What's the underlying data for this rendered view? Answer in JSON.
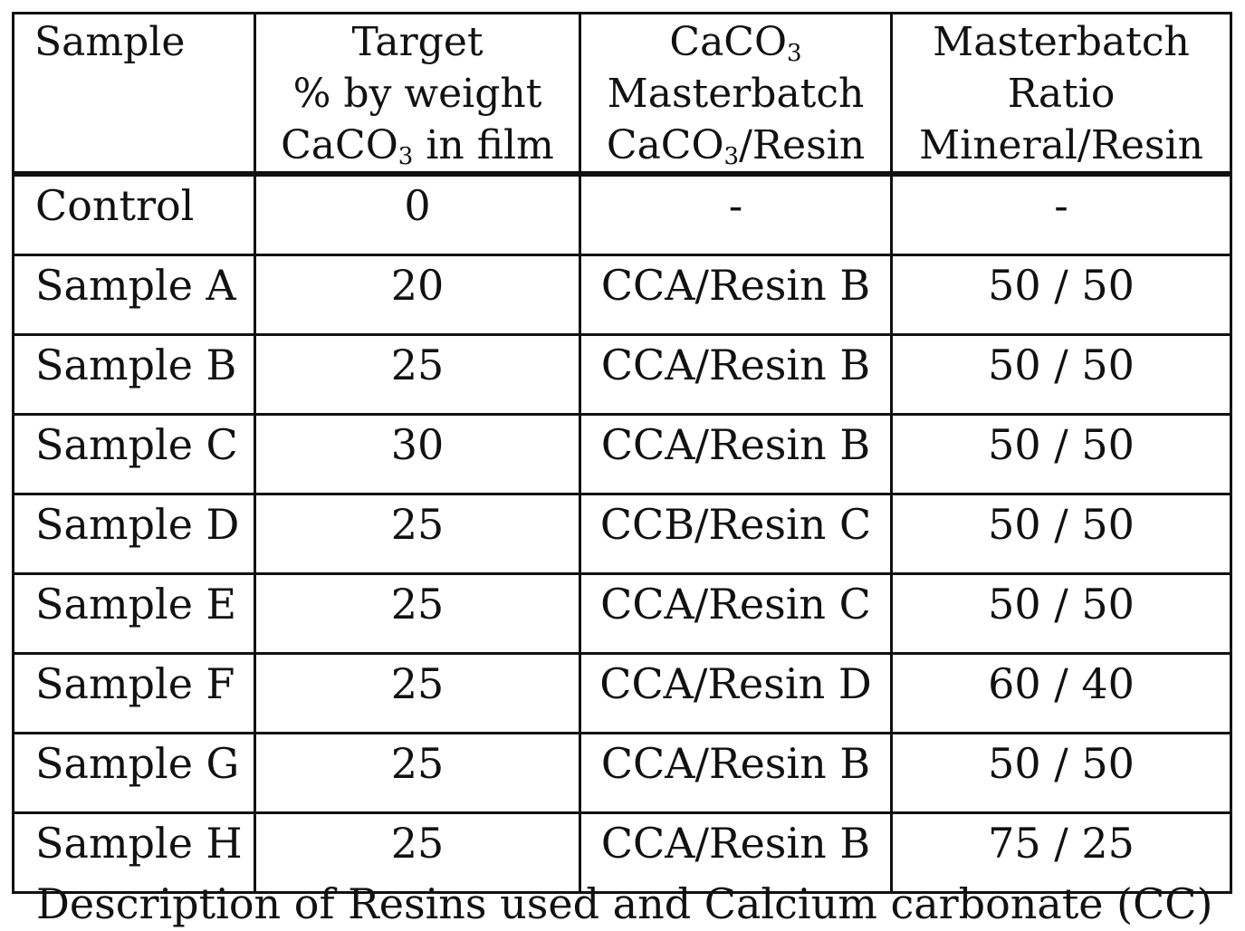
{
  "table": {
    "headers": [
      {
        "lines": [
          "Sample"
        ]
      },
      {
        "lines": [
          "Target",
          "% by weight",
          "CaCO3 in film"
        ]
      },
      {
        "lines": [
          "CaCO3",
          "Masterbatch",
          "CaCO3/Resin"
        ]
      },
      {
        "lines": [
          "Masterbatch",
          "Ratio",
          "Mineral/Resin"
        ]
      }
    ],
    "rows": [
      [
        "Control",
        "0",
        "-",
        "-"
      ],
      [
        "Sample A",
        "20",
        "CCA/Resin B",
        "50 / 50"
      ],
      [
        "Sample B",
        "25",
        "CCA/Resin B",
        "50 / 50"
      ],
      [
        "Sample C",
        "30",
        "CCA/Resin B",
        "50 / 50"
      ],
      [
        "Sample D",
        "25",
        "CCB/Resin C",
        "50 / 50"
      ],
      [
        "Sample E",
        "25",
        "CCA/Resin C",
        "50 / 50"
      ],
      [
        "Sample F",
        "25",
        "CCA/Resin D",
        "60 / 40"
      ],
      [
        "Sample G",
        "25",
        "CCA/Resin B",
        "50 / 50"
      ],
      [
        "Sample H",
        "25",
        "CCA/Resin B",
        "75 / 25"
      ]
    ]
  },
  "caption": "Description of Resins used and Calcium carbonate (CC)"
}
